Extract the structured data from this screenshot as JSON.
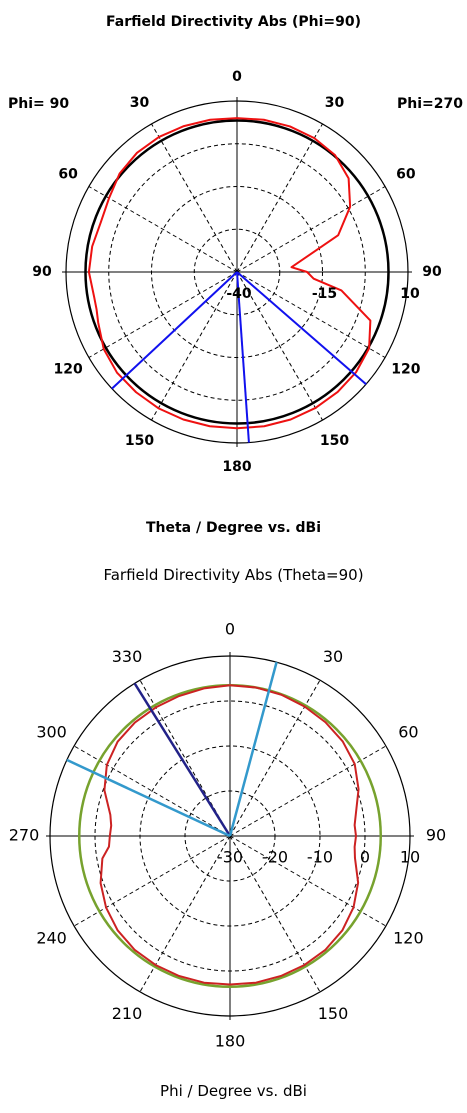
{
  "chart_data": [
    {
      "type": "polar-line",
      "title": "Farfield Directivity Abs (Phi=90)",
      "xlabel": "Theta / Degree vs. dBi",
      "side_labels": {
        "left": "Phi= 90",
        "right": "Phi=270"
      },
      "angle_labels": [
        "0",
        "30",
        "60",
        "90",
        "120",
        "150",
        "180",
        "150",
        "120",
        "90",
        "60",
        "30"
      ],
      "radial_labels": [
        "-40",
        "-15",
        "10"
      ],
      "radial_range_dbi": [
        -40,
        10
      ],
      "grid": true,
      "colors": {
        "pattern": "#ee1111",
        "reference_circle": "#000000",
        "markers": "#1111ee"
      },
      "series": [
        {
          "role": "directivity-pattern",
          "theta": [
            0,
            10,
            20,
            30,
            40,
            50,
            60,
            70,
            80,
            85,
            90,
            95,
            100,
            110,
            120,
            130,
            140,
            150,
            160,
            170,
            180,
            190,
            200,
            210,
            220,
            230,
            240,
            250,
            255,
            260,
            270,
            280,
            290,
            300,
            310,
            320,
            330,
            340,
            350
          ],
          "dbi": [
            5,
            5.2,
            5.3,
            5.2,
            4.6,
            2.6,
            -1.8,
            -8.5,
            -21,
            -24,
            -19.5,
            -17.5,
            -9,
            1.5,
            4.6,
            5.5,
            5.8,
            5.9,
            5.9,
            5.8,
            5.7,
            5.8,
            5.9,
            6,
            5.9,
            5.8,
            5,
            3.2,
            2.5,
            2.4,
            3.3,
            3,
            2.4,
            3.2,
            4.8,
            5.5,
            5.6,
            5.4,
            5.2
          ]
        },
        {
          "role": "reference-circle",
          "dbi_constant": 4.3
        },
        {
          "role": "marker-lines",
          "theta": [
            131,
            176,
            227
          ],
          "dbi": [
            10,
            10,
            10
          ]
        }
      ]
    },
    {
      "type": "polar-line",
      "title": "Farfield Directivity Abs (Theta=90)",
      "xlabel": "Phi / Degree vs. dBi",
      "angle_labels": [
        "0",
        "30",
        "60",
        "90",
        "120",
        "150",
        "180",
        "210",
        "240",
        "270",
        "300",
        "330"
      ],
      "radial_labels": [
        "-30",
        "-20",
        "-10",
        "0",
        "10"
      ],
      "radial_range_dbi": [
        -30,
        10
      ],
      "grid": true,
      "colors": {
        "pattern": "#cc2222",
        "reference_circle": "#77a22e",
        "marker_dark": "#222288",
        "marker_light": "#3399cc"
      },
      "series": [
        {
          "role": "directivity-pattern",
          "phi": [
            0,
            10,
            20,
            30,
            40,
            50,
            60,
            70,
            80,
            85,
            90,
            95,
            100,
            110,
            120,
            130,
            140,
            150,
            160,
            170,
            180,
            190,
            200,
            210,
            220,
            230,
            240,
            250,
            260,
            265,
            270,
            275,
            280,
            290,
            300,
            310,
            320,
            330,
            340,
            350
          ],
          "dbi": [
            3.5,
            3.3,
            3.1,
            3,
            2.9,
            2.6,
            1.6,
            -0.3,
            -3,
            -3.5,
            -3.3,
            -3,
            -1.2,
            0.6,
            1.8,
            2.6,
            3,
            3.1,
            3.1,
            3.1,
            3,
            3.1,
            3.1,
            3.1,
            3,
            2.6,
            1.7,
            0.3,
            -1.8,
            -2.2,
            -2,
            -2.2,
            -1.6,
            0.4,
            2,
            2.7,
            3,
            3.2,
            3.4,
            3.5
          ]
        },
        {
          "role": "reference-circle",
          "dbi_constant": 3.5
        },
        {
          "role": "marker-line-dark",
          "phi": [
            32
          ],
          "dbi": [
            10
          ]
        },
        {
          "role": "marker-lines-light",
          "phi": [
            65,
            345
          ],
          "dbi": [
            10,
            10
          ]
        }
      ]
    }
  ]
}
